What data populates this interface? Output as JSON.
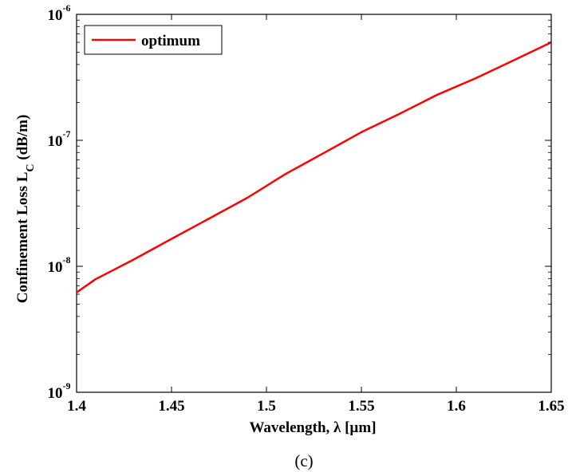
{
  "chart_data": {
    "type": "line",
    "xlabel": "Wavelength, λ [µm]",
    "ylabel": {
      "main": "Confinement Loss L",
      "subscript": "C",
      "unit": " (dB/m)"
    },
    "caption": "(c)",
    "xlim": [
      1.4,
      1.65
    ],
    "ylim": [
      1e-09,
      1e-06
    ],
    "yscale": "log",
    "xticks": [
      "1.4",
      "1.45",
      "1.5",
      "1.55",
      "1.6",
      "1.65"
    ],
    "yticks": [
      {
        "base": "10",
        "exp": "-9"
      },
      {
        "base": "10",
        "exp": "-8"
      },
      {
        "base": "10",
        "exp": "-7"
      },
      {
        "base": "10",
        "exp": "-6"
      }
    ],
    "grid": false,
    "legend_position": "top-left",
    "series": [
      {
        "name": "optimum",
        "color": "#ff0000",
        "x": [
          1.4,
          1.41,
          1.43,
          1.45,
          1.47,
          1.49,
          1.51,
          1.53,
          1.55,
          1.57,
          1.59,
          1.61,
          1.63,
          1.65
        ],
        "y": [
          6.2e-09,
          7.9e-09,
          1.13e-08,
          1.65e-08,
          2.4e-08,
          3.5e-08,
          5.4e-08,
          7.9e-08,
          1.16e-07,
          1.62e-07,
          2.3e-07,
          3.1e-07,
          4.3e-07,
          6e-07
        ]
      }
    ]
  }
}
